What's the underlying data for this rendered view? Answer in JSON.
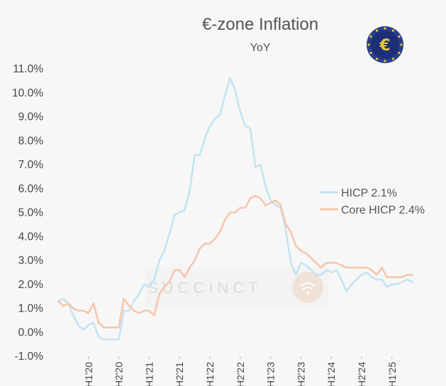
{
  "logo": {
    "symbol": "€",
    "colors": {
      "ring": "#2a3e8f",
      "inner": "#1d2f78",
      "stars": "#e9c82f",
      "symbol": "#e9c82f"
    }
  },
  "watermark": {
    "text": "SUCCINCT",
    "color": "#d9d9d9",
    "icon_color": "#f0d7c8"
  },
  "chart_data": {
    "type": "line",
    "title": "€-zone Inflation",
    "subtitle": "YoY",
    "ylim": [
      -1.0,
      11.0
    ],
    "yticks": [
      -1,
      0,
      1,
      2,
      3,
      4,
      5,
      6,
      7,
      8,
      9,
      10,
      11
    ],
    "ytick_labels": [
      "-1.0%",
      "0.0%",
      "1.0%",
      "2.0%",
      "3.0%",
      "4.0%",
      "5.0%",
      "6.0%",
      "7.0%",
      "8.0%",
      "9.0%",
      "10.0%",
      "11.0%"
    ],
    "x_range": [
      0,
      75
    ],
    "xticks": [
      {
        "label": "H1'20",
        "x": 6
      },
      {
        "label": "H2'20",
        "x": 12
      },
      {
        "label": "H1'21",
        "x": 18
      },
      {
        "label": "H2'21",
        "x": 24
      },
      {
        "label": "H1'22",
        "x": 30
      },
      {
        "label": "H2'22",
        "x": 36
      },
      {
        "label": "H1'23",
        "x": 42
      },
      {
        "label": "H2'23",
        "x": 48
      },
      {
        "label": "H1'24",
        "x": 54
      },
      {
        "label": "H2'24",
        "x": 60
      },
      {
        "label": "H1'25",
        "x": 66
      }
    ],
    "grid": false,
    "legend_position": "middle-right",
    "series": [
      {
        "name": "HICP 2.1%",
        "color": "#c5e3f3",
        "values": [
          1.3,
          1.4,
          1.2,
          0.7,
          0.3,
          0.1,
          0.3,
          0.4,
          -0.2,
          -0.3,
          -0.3,
          -0.3,
          -0.3,
          0.9,
          0.9,
          1.3,
          1.6,
          2.0,
          1.9,
          2.2,
          3.0,
          3.4,
          4.1,
          4.9,
          5.0,
          5.1,
          5.9,
          7.4,
          7.4,
          8.1,
          8.6,
          8.9,
          9.1,
          9.9,
          10.6,
          10.1,
          9.2,
          8.6,
          8.5,
          6.9,
          7.0,
          6.1,
          5.5,
          5.3,
          5.2,
          4.3,
          2.9,
          2.4,
          2.9,
          2.8,
          2.6,
          2.4,
          2.4,
          2.6,
          2.5,
          2.6,
          2.2,
          1.7,
          2.0,
          2.2,
          2.4,
          2.5,
          2.3,
          2.2,
          2.2,
          1.9,
          2.0,
          2.0,
          2.1,
          2.2,
          2.1
        ]
      },
      {
        "name": "Core HICP 2.4%",
        "color": "#f6c6ad",
        "values": [
          1.3,
          1.1,
          1.2,
          1.0,
          0.9,
          0.9,
          0.8,
          1.2,
          0.4,
          0.2,
          0.2,
          0.2,
          0.2,
          1.4,
          1.1,
          0.9,
          0.8,
          0.9,
          0.9,
          0.7,
          1.6,
          1.9,
          2.1,
          2.6,
          2.6,
          2.3,
          2.7,
          3.0,
          3.5,
          3.7,
          3.7,
          3.9,
          4.2,
          4.7,
          5.0,
          5.0,
          5.2,
          5.2,
          5.6,
          5.7,
          5.6,
          5.3,
          5.4,
          5.5,
          5.3,
          4.5,
          4.2,
          3.6,
          3.4,
          3.3,
          3.1,
          2.9,
          2.7,
          2.9,
          2.9,
          2.9,
          2.8,
          2.7,
          2.7,
          2.7,
          2.7,
          2.7,
          2.6,
          2.4,
          2.7,
          2.3,
          2.3,
          2.3,
          2.3,
          2.4,
          2.4
        ]
      }
    ]
  }
}
